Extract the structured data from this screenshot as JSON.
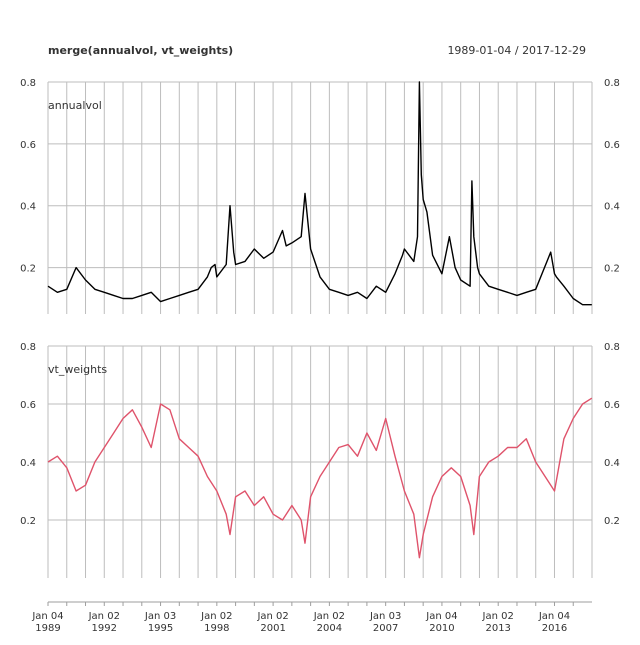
{
  "header": {
    "title": "merge(annualvol, vt_weights)",
    "date_range": "1989-01-04 / 2017-12-29"
  },
  "chart_data": [
    {
      "type": "line",
      "series": [
        {
          "name": "annualvol",
          "color": "#000000"
        }
      ],
      "panel_label": "annualvol",
      "ylim": [
        0.05,
        0.8
      ],
      "y_ticks": [
        "0.2",
        "0.4",
        "0.6",
        "0.8"
      ],
      "y_tick_values": [
        0.2,
        0.4,
        0.6,
        0.8
      ],
      "grid": true,
      "x": [
        "1989.0",
        "1989.5",
        "1990.0",
        "1990.5",
        "1991.0",
        "1991.5",
        "1992.0",
        "1992.5",
        "1993.0",
        "1993.5",
        "1994.0",
        "1994.5",
        "1995.0",
        "1995.5",
        "1996.0",
        "1996.5",
        "1997.0",
        "1997.5",
        "1997.7",
        "1997.9",
        "1998.0",
        "1998.5",
        "1998.7",
        "1998.9",
        "1999.0",
        "1999.5",
        "2000.0",
        "2000.5",
        "2001.0",
        "2001.5",
        "2001.7",
        "2002.0",
        "2002.5",
        "2002.7",
        "2003.0",
        "2003.5",
        "2004.0",
        "2004.5",
        "2005.0",
        "2005.5",
        "2006.0",
        "2006.5",
        "2007.0",
        "2007.5",
        "2007.9",
        "2008.0",
        "2008.5",
        "2008.7",
        "2008.8",
        "2008.9",
        "2009.0",
        "2009.2",
        "2009.5",
        "2010.0",
        "2010.4",
        "2010.7",
        "2011.0",
        "2011.5",
        "2011.6",
        "2011.7",
        "2011.9",
        "2012.0",
        "2012.5",
        "2013.0",
        "2013.5",
        "2014.0",
        "2014.5",
        "2015.0",
        "2015.6",
        "2015.8",
        "2016.0",
        "2016.1",
        "2016.5",
        "2017.0",
        "2017.5",
        "2017.99"
      ],
      "values": [
        0.14,
        0.12,
        0.13,
        0.2,
        0.16,
        0.13,
        0.12,
        0.11,
        0.1,
        0.1,
        0.11,
        0.12,
        0.09,
        0.1,
        0.11,
        0.12,
        0.13,
        0.17,
        0.2,
        0.21,
        0.17,
        0.21,
        0.4,
        0.25,
        0.21,
        0.22,
        0.26,
        0.23,
        0.25,
        0.32,
        0.27,
        0.28,
        0.3,
        0.44,
        0.26,
        0.17,
        0.13,
        0.12,
        0.11,
        0.12,
        0.1,
        0.14,
        0.12,
        0.18,
        0.24,
        0.26,
        0.22,
        0.3,
        0.81,
        0.5,
        0.42,
        0.38,
        0.24,
        0.18,
        0.3,
        0.2,
        0.16,
        0.14,
        0.48,
        0.3,
        0.2,
        0.18,
        0.14,
        0.13,
        0.12,
        0.11,
        0.12,
        0.13,
        0.22,
        0.25,
        0.18,
        0.17,
        0.14,
        0.1,
        0.08,
        0.08
      ]
    },
    {
      "type": "line",
      "series": [
        {
          "name": "vt_weights",
          "color": "#df536b"
        }
      ],
      "panel_label": "vt_weights",
      "ylim": [
        0.0,
        0.8
      ],
      "y_ticks": [
        "0.2",
        "0.4",
        "0.6",
        "0.8"
      ],
      "y_tick_values": [
        0.2,
        0.4,
        0.6,
        0.8
      ],
      "grid": true,
      "x": [
        "1989.0",
        "1989.5",
        "1990.0",
        "1990.5",
        "1991.0",
        "1991.5",
        "1992.0",
        "1992.5",
        "1993.0",
        "1993.5",
        "1994.0",
        "1994.5",
        "1995.0",
        "1995.5",
        "1996.0",
        "1996.5",
        "1997.0",
        "1997.5",
        "1998.0",
        "1998.5",
        "1998.7",
        "1999.0",
        "1999.5",
        "2000.0",
        "2000.5",
        "2001.0",
        "2001.5",
        "2002.0",
        "2002.5",
        "2002.7",
        "2003.0",
        "2003.5",
        "2004.0",
        "2004.5",
        "2005.0",
        "2005.5",
        "2006.0",
        "2006.5",
        "2007.0",
        "2007.5",
        "2008.0",
        "2008.5",
        "2008.8",
        "2009.0",
        "2009.5",
        "2010.0",
        "2010.5",
        "2011.0",
        "2011.5",
        "2011.7",
        "2012.0",
        "2012.5",
        "2013.0",
        "2013.5",
        "2014.0",
        "2014.5",
        "2015.0",
        "2015.5",
        "2016.0",
        "2016.5",
        "2017.0",
        "2017.5",
        "2017.99"
      ],
      "values": [
        0.4,
        0.42,
        0.38,
        0.3,
        0.32,
        0.4,
        0.45,
        0.5,
        0.55,
        0.58,
        0.52,
        0.45,
        0.6,
        0.58,
        0.48,
        0.45,
        0.42,
        0.35,
        0.3,
        0.22,
        0.15,
        0.28,
        0.3,
        0.25,
        0.28,
        0.22,
        0.2,
        0.25,
        0.2,
        0.12,
        0.28,
        0.35,
        0.4,
        0.45,
        0.46,
        0.42,
        0.5,
        0.44,
        0.55,
        0.42,
        0.3,
        0.22,
        0.07,
        0.15,
        0.28,
        0.35,
        0.38,
        0.35,
        0.25,
        0.15,
        0.35,
        0.4,
        0.42,
        0.45,
        0.45,
        0.48,
        0.4,
        0.35,
        0.3,
        0.48,
        0.55,
        0.6,
        0.62
      ]
    }
  ],
  "x_axis": {
    "tick_labels": [
      {
        "line1": "Jan 04",
        "line2": "1989",
        "at": 1989.0
      },
      {
        "line1": "Jan 02",
        "line2": "1992",
        "at": 1992.0
      },
      {
        "line1": "Jan 03",
        "line2": "1995",
        "at": 1995.0
      },
      {
        "line1": "Jan 02",
        "line2": "1998",
        "at": 1998.0
      },
      {
        "line1": "Jan 02",
        "line2": "2001",
        "at": 2001.0
      },
      {
        "line1": "Jan 02",
        "line2": "2004",
        "at": 2004.0
      },
      {
        "line1": "Jan 03",
        "line2": "2007",
        "at": 2007.0
      },
      {
        "line1": "Jan 04",
        "line2": "2010",
        "at": 2010.0
      },
      {
        "line1": "Jan 02",
        "line2": "2013",
        "at": 2013.0
      },
      {
        "line1": "Jan 04",
        "line2": "2016",
        "at": 2016.0
      }
    ],
    "xlim": [
      1989.0,
      2018.0
    ]
  }
}
